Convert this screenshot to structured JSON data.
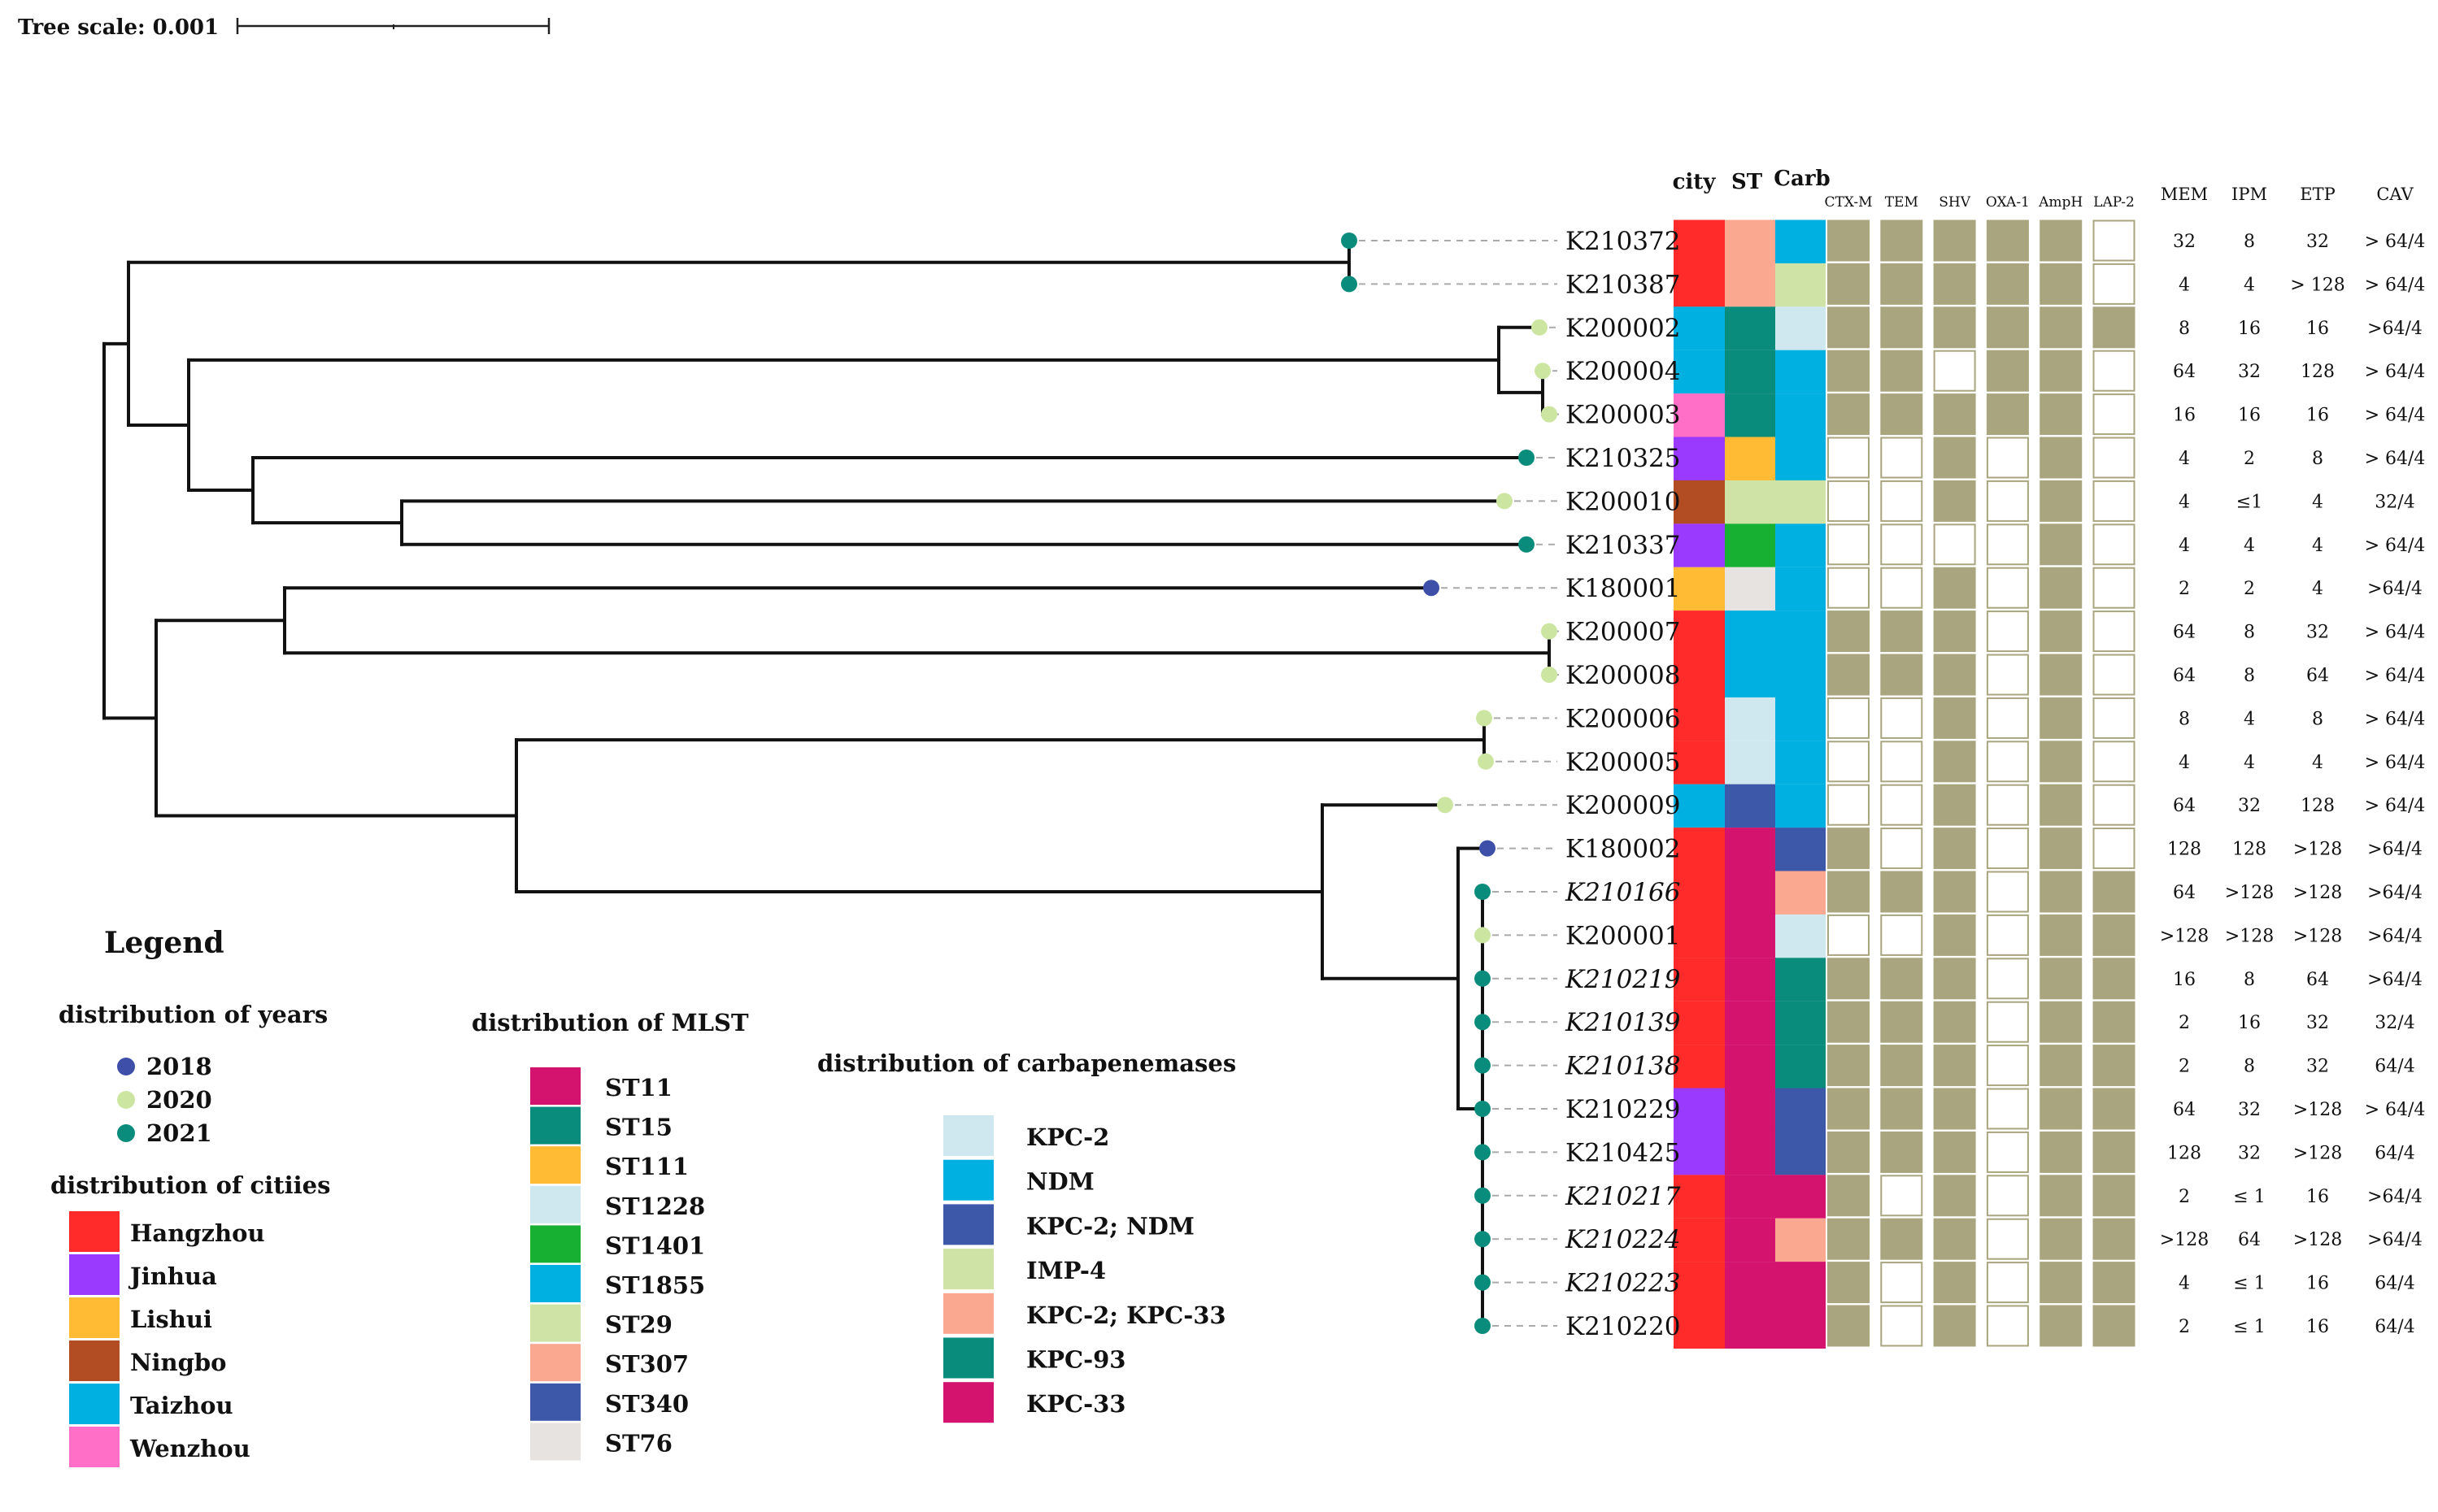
{
  "tree_scale": {
    "label": "Tree scale: 0.001"
  },
  "headers": {
    "city": "city",
    "st": "ST",
    "carb": "Carb",
    "genes": [
      "CTX-M",
      "TEM",
      "SHV",
      "OXA-1",
      "AmpH",
      "LAP-2"
    ],
    "mic": [
      "MEM",
      "IPM",
      "ETP",
      "CAV"
    ]
  },
  "colors": {
    "city": {
      "Hangzhou": "#ff2a2a",
      "Jinhua": "#9a3aff",
      "Lishui": "#ffbb33",
      "Ningbo": "#b24c22",
      "Taizhou": "#00b0e0",
      "Wenzhou": "#ff6fc8"
    },
    "st": {
      "ST11": "#d4136f",
      "ST15": "#0a8c7c",
      "ST111": "#ffbb33",
      "ST1228": "#cfe8ef",
      "ST1401": "#18b033",
      "ST1855": "#00b0e0",
      "ST29": "#cfe3a6",
      "ST307": "#fba891",
      "ST340": "#3d58a8",
      "ST76": "#e6e3e0"
    },
    "carb": {
      "KPC-2": "#cfe8ef",
      "NDM": "#00b0e0",
      "KPC-2; NDM": "#3d58a8",
      "IMP-4": "#cfe3a6",
      "KPC-2; KPC-33": "#fba891",
      "KPC-93": "#0a8c7c",
      "KPC-33": "#d4136f"
    },
    "year": {
      "2018": "#3d4fa8",
      "2020": "#cce6a2",
      "2021": "#0a8c7c"
    },
    "gene_present": "#a9a57e",
    "gene_absent": "#ffffff"
  },
  "isolates": [
    {
      "id": "K210372",
      "italic": false,
      "year": "2021",
      "city": "Hangzhou",
      "st": "ST307",
      "carb": "NDM",
      "genes": [
        1,
        1,
        1,
        1,
        1,
        0
      ],
      "mic": [
        "32",
        "8",
        "32",
        "> 64/4"
      ]
    },
    {
      "id": "K210387",
      "italic": false,
      "year": "2021",
      "city": "Hangzhou",
      "st": "ST307",
      "carb": "IMP-4",
      "genes": [
        1,
        1,
        1,
        1,
        1,
        0
      ],
      "mic": [
        "4",
        "4",
        "> 128",
        "> 64/4"
      ]
    },
    {
      "id": "K200002",
      "italic": false,
      "year": "2020",
      "city": "Taizhou",
      "st": "ST15",
      "carb": "KPC-2",
      "genes": [
        1,
        1,
        1,
        1,
        1,
        1
      ],
      "mic": [
        "8",
        "16",
        "16",
        ">64/4"
      ]
    },
    {
      "id": "K200004",
      "italic": false,
      "year": "2020",
      "city": "Taizhou",
      "st": "ST15",
      "carb": "NDM",
      "genes": [
        1,
        1,
        0,
        1,
        1,
        0
      ],
      "mic": [
        "64",
        "32",
        "128",
        "> 64/4"
      ]
    },
    {
      "id": "K200003",
      "italic": false,
      "year": "2020",
      "city": "Wenzhou",
      "st": "ST15",
      "carb": "NDM",
      "genes": [
        1,
        1,
        1,
        1,
        1,
        0
      ],
      "mic": [
        "16",
        "16",
        "16",
        "> 64/4"
      ]
    },
    {
      "id": "K210325",
      "italic": false,
      "year": "2021",
      "city": "Jinhua",
      "st": "ST111",
      "carb": "NDM",
      "genes": [
        0,
        0,
        1,
        0,
        1,
        0
      ],
      "mic": [
        "4",
        "2",
        "8",
        "> 64/4"
      ]
    },
    {
      "id": "K200010",
      "italic": false,
      "year": "2020",
      "city": "Ningbo",
      "st": "ST29",
      "carb": "IMP-4",
      "genes": [
        0,
        0,
        1,
        0,
        1,
        0
      ],
      "mic": [
        "4",
        "≤1",
        "4",
        "32/4"
      ]
    },
    {
      "id": "K210337",
      "italic": false,
      "year": "2021",
      "city": "Jinhua",
      "st": "ST1401",
      "carb": "NDM",
      "genes": [
        0,
        0,
        0,
        0,
        1,
        0
      ],
      "mic": [
        "4",
        "4",
        "4",
        "> 64/4"
      ]
    },
    {
      "id": "K180001",
      "italic": false,
      "year": "2018",
      "city": "Lishui",
      "st": "ST76",
      "carb": "NDM",
      "genes": [
        0,
        0,
        1,
        0,
        1,
        0
      ],
      "mic": [
        "2",
        "2",
        "4",
        ">64/4"
      ]
    },
    {
      "id": "K200007",
      "italic": false,
      "year": "2020",
      "city": "Hangzhou",
      "st": "ST1855",
      "carb": "NDM",
      "genes": [
        1,
        1,
        1,
        0,
        1,
        0
      ],
      "mic": [
        "64",
        "8",
        "32",
        "> 64/4"
      ]
    },
    {
      "id": "K200008",
      "italic": false,
      "year": "2020",
      "city": "Hangzhou",
      "st": "ST1855",
      "carb": "NDM",
      "genes": [
        1,
        1,
        1,
        0,
        1,
        0
      ],
      "mic": [
        "64",
        "8",
        "64",
        "> 64/4"
      ]
    },
    {
      "id": "K200006",
      "italic": false,
      "year": "2020",
      "city": "Hangzhou",
      "st": "ST1228",
      "carb": "NDM",
      "genes": [
        0,
        0,
        1,
        0,
        1,
        0
      ],
      "mic": [
        "8",
        "4",
        "8",
        "> 64/4"
      ]
    },
    {
      "id": "K200005",
      "italic": false,
      "year": "2020",
      "city": "Hangzhou",
      "st": "ST1228",
      "carb": "NDM",
      "genes": [
        0,
        0,
        1,
        0,
        1,
        0
      ],
      "mic": [
        "4",
        "4",
        "4",
        "> 64/4"
      ]
    },
    {
      "id": "K200009",
      "italic": false,
      "year": "2020",
      "city": "Taizhou",
      "st": "ST340",
      "carb": "NDM",
      "genes": [
        0,
        0,
        1,
        0,
        1,
        0
      ],
      "mic": [
        "64",
        "32",
        "128",
        "> 64/4"
      ]
    },
    {
      "id": "K180002",
      "italic": false,
      "year": "2018",
      "city": "Hangzhou",
      "st": "ST11",
      "carb": "KPC-2; NDM",
      "genes": [
        1,
        0,
        1,
        0,
        1,
        0
      ],
      "mic": [
        "128",
        "128",
        ">128",
        ">64/4"
      ]
    },
    {
      "id": "K210166",
      "italic": true,
      "year": "2021",
      "city": "Hangzhou",
      "st": "ST11",
      "carb": "KPC-2; KPC-33",
      "genes": [
        1,
        1,
        1,
        0,
        1,
        1
      ],
      "mic": [
        "64",
        ">128",
        ">128",
        ">64/4"
      ]
    },
    {
      "id": "K200001",
      "italic": false,
      "year": "2020",
      "city": "Hangzhou",
      "st": "ST11",
      "carb": "KPC-2",
      "genes": [
        0,
        0,
        1,
        0,
        1,
        1
      ],
      "mic": [
        ">128",
        ">128",
        ">128",
        ">64/4"
      ]
    },
    {
      "id": "K210219",
      "italic": true,
      "year": "2021",
      "city": "Hangzhou",
      "st": "ST11",
      "carb": "KPC-93",
      "genes": [
        1,
        1,
        1,
        0,
        1,
        1
      ],
      "mic": [
        "16",
        "8",
        "64",
        ">64/4"
      ]
    },
    {
      "id": "K210139",
      "italic": true,
      "year": "2021",
      "city": "Hangzhou",
      "st": "ST11",
      "carb": "KPC-93",
      "genes": [
        1,
        1,
        1,
        0,
        1,
        1
      ],
      "mic": [
        "2",
        "16",
        "32",
        "32/4"
      ]
    },
    {
      "id": "K210138",
      "italic": true,
      "year": "2021",
      "city": "Hangzhou",
      "st": "ST11",
      "carb": "KPC-93",
      "genes": [
        1,
        1,
        1,
        0,
        1,
        1
      ],
      "mic": [
        "2",
        "8",
        "32",
        "64/4"
      ]
    },
    {
      "id": "K210229",
      "italic": false,
      "year": "2021",
      "city": "Jinhua",
      "st": "ST11",
      "carb": "KPC-2; NDM",
      "genes": [
        1,
        1,
        1,
        0,
        1,
        1
      ],
      "mic": [
        "64",
        "32",
        ">128",
        "> 64/4"
      ]
    },
    {
      "id": "K210425",
      "italic": false,
      "year": "2021",
      "city": "Jinhua",
      "st": "ST11",
      "carb": "KPC-2; NDM",
      "genes": [
        1,
        1,
        1,
        0,
        1,
        1
      ],
      "mic": [
        "128",
        "32",
        ">128",
        "64/4"
      ]
    },
    {
      "id": "K210217",
      "italic": true,
      "year": "2021",
      "city": "Hangzhou",
      "st": "ST11",
      "carb": "KPC-33",
      "genes": [
        1,
        0,
        1,
        0,
        1,
        1
      ],
      "mic": [
        "2",
        "≤ 1",
        "16",
        ">64/4"
      ]
    },
    {
      "id": "K210224",
      "italic": true,
      "year": "2021",
      "city": "Hangzhou",
      "st": "ST11",
      "carb": "KPC-2; KPC-33",
      "genes": [
        1,
        1,
        1,
        0,
        1,
        1
      ],
      "mic": [
        ">128",
        "64",
        ">128",
        ">64/4"
      ]
    },
    {
      "id": "K210223",
      "italic": true,
      "year": "2021",
      "city": "Hangzhou",
      "st": "ST11",
      "carb": "KPC-33",
      "genes": [
        1,
        0,
        1,
        0,
        1,
        1
      ],
      "mic": [
        "4",
        "≤ 1",
        "16",
        "64/4"
      ]
    },
    {
      "id": "K210220",
      "italic": false,
      "year": "2021",
      "city": "Hangzhou",
      "st": "ST11",
      "carb": "KPC-33",
      "genes": [
        1,
        0,
        1,
        0,
        1,
        1
      ],
      "mic": [
        "2",
        "≤ 1",
        "16",
        "64/4"
      ]
    }
  ],
  "legend": {
    "title": "Legend",
    "years": {
      "title": "distribution of years",
      "items": [
        "2018",
        "2020",
        "2021"
      ]
    },
    "cities": {
      "title": "distribution of citiies",
      "items": [
        "Hangzhou",
        "Jinhua",
        "Lishui",
        "Ningbo",
        "Taizhou",
        "Wenzhou"
      ],
      "highlight": [
        "Hangzhou"
      ]
    },
    "mlst": {
      "title": "distribution of MLST",
      "items": [
        "ST11",
        "ST15",
        "ST111",
        "ST1228",
        "ST1401",
        "ST1855",
        "ST29",
        "ST307",
        "ST340",
        "ST76"
      ],
      "highlight": [
        "ST11",
        "ST15"
      ]
    },
    "carbapenemases": {
      "title": "distribution of carbapenemases",
      "items": [
        "KPC-2",
        "NDM",
        "KPC-2; NDM",
        "IMP-4",
        "KPC-2; KPC-33",
        "KPC-93",
        "KPC-33"
      ],
      "highlight": [
        "KPC-2; KPC-33",
        "KPC-93",
        "KPC-33"
      ]
    }
  }
}
